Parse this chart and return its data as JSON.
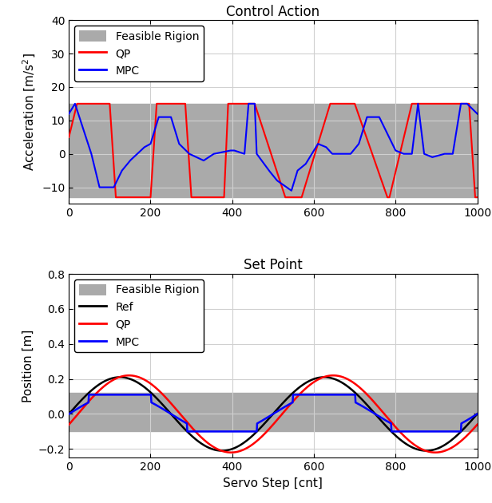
{
  "title1": "Control Action",
  "title2": "Set Point",
  "xlabel": "Servo Step [cnt]",
  "ylabel1": "Acceleration [m/s$^2$]",
  "ylabel2": "Position [m]",
  "xlim": [
    0,
    1000
  ],
  "ylim1": [
    -15,
    40
  ],
  "ylim2": [
    -0.25,
    0.8
  ],
  "yticks1": [
    -10,
    0,
    10,
    20,
    30,
    40
  ],
  "yticks2": [
    -0.2,
    0.0,
    0.2,
    0.4,
    0.6,
    0.8
  ],
  "feasible_region1": [
    -13,
    15
  ],
  "feasible_region2": [
    -0.1,
    0.12
  ],
  "gray_color": "#aaaaaa",
  "qp_color": "#ff0000",
  "mpc_color": "#0000ff",
  "ref_color": "#000000",
  "legend1_labels": [
    "Feasible Rigion",
    "QP",
    "MPC"
  ],
  "legend2_labels": [
    "Feasible Rigion",
    "Ref",
    "QP",
    "MPC"
  ],
  "n_steps": 1001,
  "qp_x": [
    0,
    20,
    50,
    55,
    100,
    115,
    200,
    215,
    285,
    300,
    380,
    390,
    445,
    450,
    455,
    530,
    545,
    565,
    570,
    640,
    650,
    695,
    700,
    780,
    785,
    840,
    855,
    865,
    920,
    935,
    980,
    995,
    1000
  ],
  "qp_y": [
    5,
    15,
    15,
    15,
    15,
    -13,
    -13,
    15,
    15,
    -13,
    -13,
    15,
    15,
    15,
    15,
    -13,
    -13,
    -13,
    -13,
    15,
    15,
    15,
    15,
    -13,
    -13,
    15,
    15,
    15,
    15,
    15,
    15,
    -13,
    -13
  ],
  "mpc_x": [
    0,
    15,
    55,
    75,
    100,
    110,
    130,
    150,
    185,
    200,
    220,
    250,
    270,
    295,
    330,
    355,
    395,
    405,
    430,
    440,
    455,
    460,
    490,
    510,
    545,
    560,
    580,
    595,
    610,
    630,
    645,
    670,
    690,
    710,
    730,
    760,
    800,
    820,
    840,
    855,
    870,
    890,
    920,
    940,
    960,
    975,
    1000
  ],
  "mpc_y": [
    12,
    15,
    0,
    -10,
    -10,
    -10,
    -5,
    -2,
    2,
    3,
    11,
    11,
    3,
    0,
    -2,
    0,
    1,
    1,
    0,
    15,
    15,
    0,
    -5,
    -8,
    -11,
    -5,
    -3,
    0,
    3,
    2,
    0,
    0,
    0,
    3,
    11,
    11,
    1,
    0,
    0,
    15,
    0,
    -1,
    0,
    0,
    15,
    15,
    12
  ]
}
